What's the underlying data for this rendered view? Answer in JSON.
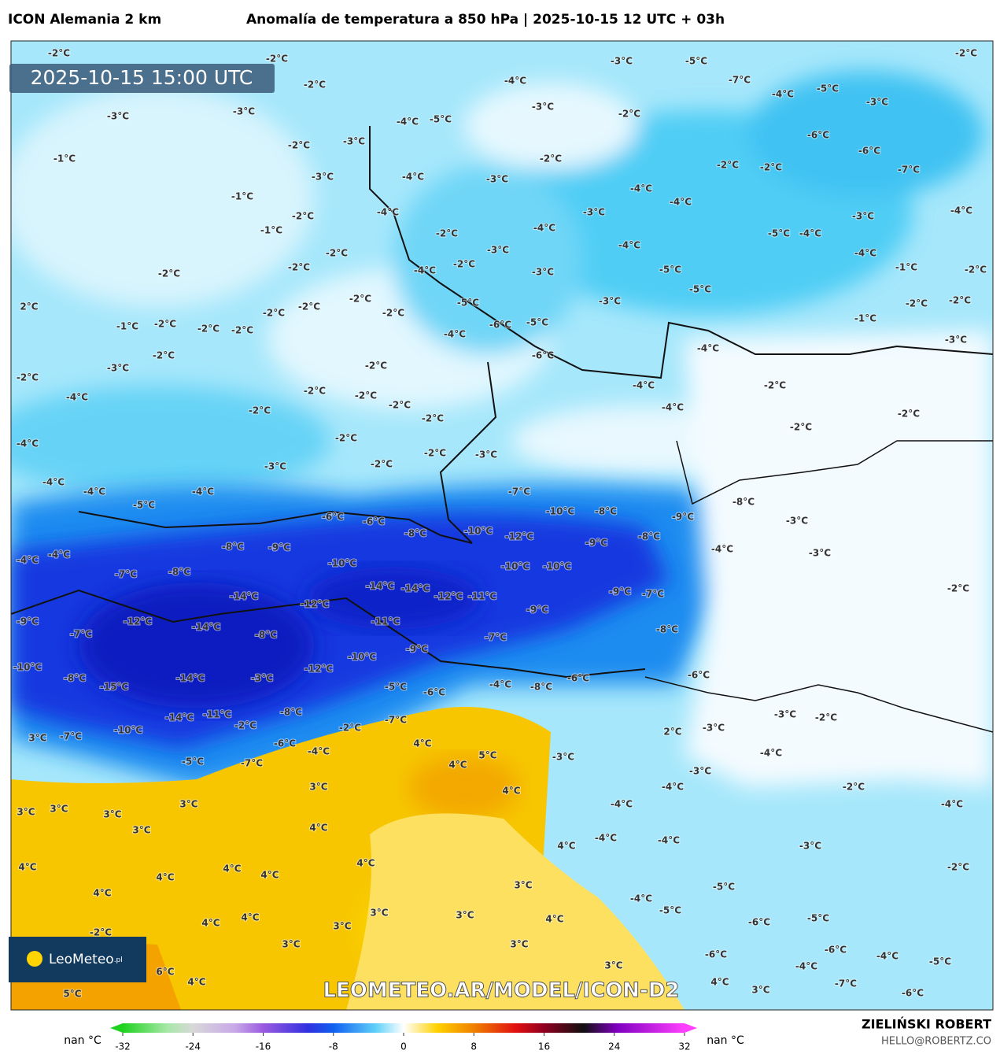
{
  "header": {
    "model": "ICON Alemania 2 km",
    "title": "Anomalía de temperatura a 850 hPa | 2025-10-15 12 UTC + 03h"
  },
  "map": {
    "valid_time": "2025-10-15 15:00 UTC",
    "logo": "LeoMeteo",
    "logo_suffix": ".pl",
    "watermark": "LEOMETEO.AR/MODEL/ICON-D2",
    "labels": [
      "-2°C",
      "-2°C",
      "-3°C",
      "-5°C",
      "-2°C",
      "-7°C",
      "-4°C",
      "-2°C",
      "-5°C",
      "-4°C",
      "-3°C",
      "-3°C",
      "-3°C",
      "-3°C",
      "-2°C",
      "-4°C",
      "-5°C",
      "-2°C",
      "-3°C",
      "-6°C",
      "-6°C",
      "-7°C",
      "-1°C",
      "-2°C",
      "-2°C",
      "-2°C",
      "-3°C",
      "-4°C",
      "-3°C",
      "-4°C",
      "-1°C",
      "-4°C",
      "-3°C",
      "-2°C",
      "-4°C",
      "-3°C",
      "-4°C",
      "-1°C",
      "-4°C",
      "-2°C",
      "-5°C",
      "-4°C",
      "-4°C",
      "-2°C",
      "-3°C",
      "-4°C",
      "-2°C",
      "-2°C",
      "-4°C",
      "-2°C",
      "-3°C",
      "-5°C",
      "-1°C",
      "-2°C",
      "-2°C",
      "-2°C",
      "-5°C",
      "-3°C",
      "-5°C",
      "2°C",
      "-2°C",
      "-2°C",
      "-2°C",
      "-2°C",
      "-1°C",
      "-2°C",
      "-2°C",
      "-2°C",
      "-6°C",
      "-5°C",
      "-4°C",
      "-1°C",
      "-3°C",
      "-4°C",
      "-2°C",
      "-6°C",
      "-3°C",
      "-2°C",
      "-2°C",
      "-4°C",
      "-2°C",
      "-2°C",
      "-2°C",
      "-4°C",
      "-2°C",
      "-4°C",
      "-2°C",
      "-2°C",
      "-2°C",
      "-2°C",
      "-2°C",
      "-4°C",
      "-2°C",
      "-3°C",
      "-2°C",
      "-3°C",
      "-4°C",
      "-4°C",
      "-4°C",
      "-7°C",
      "-8°C",
      "-5°C",
      "-10°C",
      "-8°C",
      "-6°C",
      "-6°C",
      "-9°C",
      "-3°C",
      "-8°C",
      "-10°C",
      "-12°C",
      "-8°C",
      "-8°C",
      "-9°C",
      "-9°C",
      "-4°C",
      "-3°C",
      "-4°C",
      "-4°C",
      "-10°C",
      "-10°C",
      "-10°C",
      "-7°C",
      "-8°C",
      "-14°C",
      "-14°C",
      "-2°C",
      "-12°C",
      "-11°C",
      "-9°C",
      "-7°C",
      "-14°C",
      "-12°C",
      "-9°C",
      "-9°C",
      "-12°C",
      "-11°C",
      "-14°C",
      "-7°C",
      "-8°C",
      "-7°C",
      "-8°C",
      "-9°C",
      "-10°C",
      "-10°C",
      "-12°C",
      "-14°C",
      "-8°C",
      "-3°C",
      "-6°C",
      "-6°C",
      "-15°C",
      "-5°C",
      "-6°C",
      "-4°C",
      "-8°C",
      "-14°C",
      "-11°C",
      "-8°C",
      "-7°C",
      "-3°C",
      "-2°C",
      "-2°C",
      "-2°C",
      "-10°C",
      "-3°C",
      "2°C",
      "3°C",
      "-7°C",
      "-6°C",
      "4°C",
      "5°C",
      "-4°C",
      "-4°C",
      "-5°C",
      "-7°C",
      "4°C",
      "-3°C",
      "-3°C",
      "3°C",
      "-4°C",
      "-2°C",
      "4°C",
      "3°C",
      "3°C",
      "3°C",
      "3°C",
      "-4°C",
      "-4°C",
      "3°C",
      "4°C",
      "-4°C",
      "-4°C",
      "-3°C",
      "4°C",
      "4°C",
      "4°C",
      "4°C",
      "4°C",
      "4°C",
      "-2°C",
      "3°C",
      "-4°C",
      "-5°C",
      "4°C",
      "3°C",
      "3°C",
      "4°C",
      "-5°C",
      "-6°C",
      "-5°C",
      "4°C",
      "4°C",
      "3°C",
      "-2°C",
      "3°C",
      "3°C",
      "-6°C",
      "-4°C",
      "-5°C",
      "-6°C",
      "3°C",
      "-4°C",
      "6°C",
      "4°C",
      "-7°C",
      "4°C",
      "3°C",
      "5°C",
      "-6°C"
    ]
  },
  "colorbar": {
    "ticks": [
      -32,
      -24,
      -16,
      -8,
      0,
      8,
      16,
      24,
      32
    ],
    "left_label": "nan °C",
    "right_label": "nan °C"
  },
  "footer": {
    "author": "ZIELIŃSKI ROBERT",
    "email": "HELLO@ROBERTZ.CO"
  }
}
